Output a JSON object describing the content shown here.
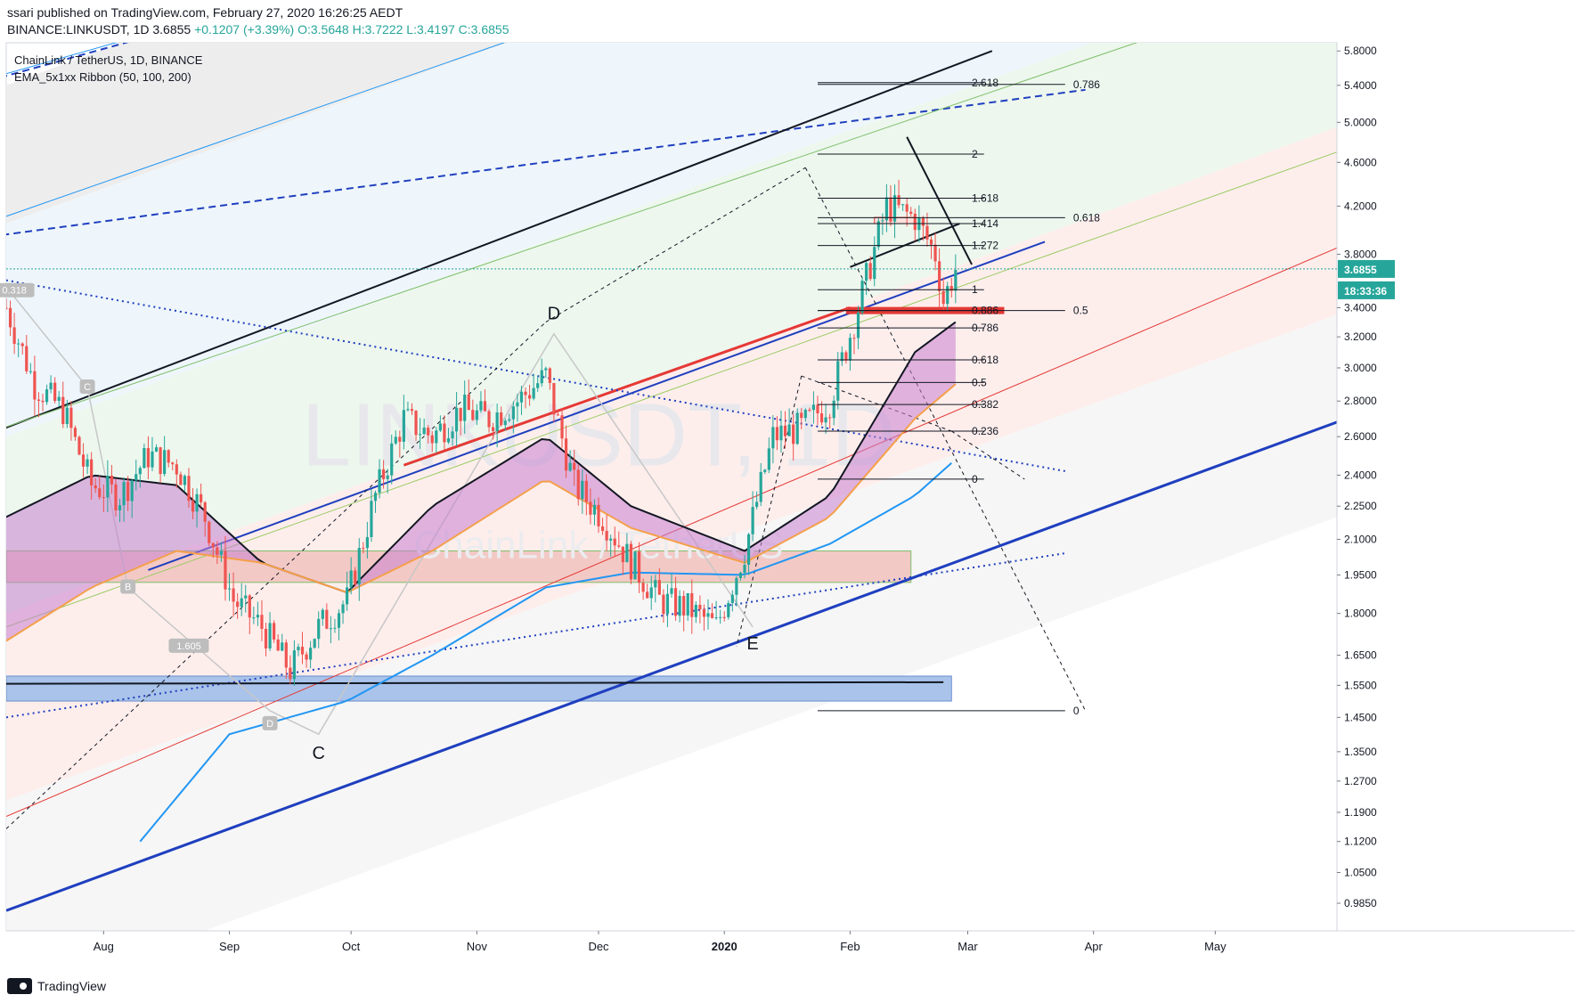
{
  "header": {
    "publish_line": "ssari published on TradingView.com, February 27, 2020 16:26:25 AEDT",
    "symbol_line_prefix": "BINANCE:LINKUSDT, 1D 3.6855",
    "change": "+0.1207 (+3.39%)",
    "ohlc": "O:3.5648 H:3.7222 L:3.4197 C:3.6855"
  },
  "indicators": {
    "pair_line": "ChainLink / TetherUS, 1D, BINANCE",
    "ribbon_line": "EMA_5x1xx Ribbon (50, 100, 200)"
  },
  "watermark": {
    "symbol": "LINKUSDT, 1D",
    "name": "ChainLink / TetherUS"
  },
  "price_badge": {
    "price": "3.6855",
    "countdown": "18:33:36"
  },
  "footer": {
    "brand": "TradingView"
  },
  "colors": {
    "up": "#26a69a",
    "down": "#ef5350",
    "ribbon": "#c77fd0",
    "ema100": "#f5a04a",
    "ema200": "#2196f3"
  },
  "chart_data": {
    "type": "candlestick",
    "y_scale": "log",
    "ylim": [
      0.93,
      5.9
    ],
    "x_range": [
      "2019-07-08",
      "2020-05-31"
    ],
    "y_ticks": [
      "5.8000",
      "5.4000",
      "5.0000",
      "4.6000",
      "4.2000",
      "3.8000",
      "3.4000",
      "3.2000",
      "3.0000",
      "2.8000",
      "2.6000",
      "2.4000",
      "2.2500",
      "2.1000",
      "1.9500",
      "1.8000",
      "1.6500",
      "1.5500",
      "1.4500",
      "1.3500",
      "1.2700",
      "1.1900",
      "1.1200",
      "1.0500",
      "0.9850"
    ],
    "x_ticks": [
      {
        "label": "Aug",
        "date": "2019-08-01"
      },
      {
        "label": "Sep",
        "date": "2019-09-01"
      },
      {
        "label": "Oct",
        "date": "2019-10-01"
      },
      {
        "label": "Nov",
        "date": "2019-11-01"
      },
      {
        "label": "Dec",
        "date": "2019-12-01"
      },
      {
        "label": "2020",
        "date": "2020-01-01"
      },
      {
        "label": "Feb",
        "date": "2020-02-01"
      },
      {
        "label": "Mar",
        "date": "2020-03-01"
      },
      {
        "label": "Apr",
        "date": "2020-04-01"
      },
      {
        "label": "May",
        "date": "2020-05-01"
      }
    ],
    "price_anchors": [
      [
        "2019-07-08",
        3.4
      ],
      [
        "2019-07-15",
        2.9
      ],
      [
        "2019-07-22",
        2.75
      ],
      [
        "2019-07-29",
        2.35
      ],
      [
        "2019-08-05",
        2.3
      ],
      [
        "2019-08-12",
        2.5
      ],
      [
        "2019-08-19",
        2.45
      ],
      [
        "2019-08-26",
        2.2
      ],
      [
        "2019-09-02",
        1.85
      ],
      [
        "2019-09-09",
        1.75
      ],
      [
        "2019-09-16",
        1.6
      ],
      [
        "2019-09-23",
        1.75
      ],
      [
        "2019-09-30",
        1.85
      ],
      [
        "2019-10-07",
        2.3
      ],
      [
        "2019-10-14",
        2.7
      ],
      [
        "2019-10-21",
        2.6
      ],
      [
        "2019-10-28",
        2.75
      ],
      [
        "2019-11-04",
        2.7
      ],
      [
        "2019-11-11",
        2.8
      ],
      [
        "2019-11-18",
        2.95
      ],
      [
        "2019-11-25",
        2.35
      ],
      [
        "2019-12-02",
        2.2
      ],
      [
        "2019-12-09",
        2.0
      ],
      [
        "2019-12-16",
        1.85
      ],
      [
        "2019-12-23",
        1.82
      ],
      [
        "2019-12-30",
        1.75
      ],
      [
        "2020-01-06",
        2.05
      ],
      [
        "2020-01-13",
        2.6
      ],
      [
        "2020-01-20",
        2.65
      ],
      [
        "2020-01-27",
        2.8
      ],
      [
        "2020-02-03",
        3.4
      ],
      [
        "2020-02-10",
        4.2
      ],
      [
        "2020-02-17",
        4.1
      ],
      [
        "2020-02-22",
        3.8
      ],
      [
        "2020-02-24",
        3.45
      ],
      [
        "2020-02-27",
        3.6855
      ]
    ],
    "ema_ribbon_top": [
      [
        "2019-07-08",
        2.2
      ],
      [
        "2019-07-29",
        2.4
      ],
      [
        "2019-08-19",
        2.35
      ],
      [
        "2019-09-09",
        2.0
      ],
      [
        "2019-09-30",
        1.88
      ],
      [
        "2019-10-21",
        2.25
      ],
      [
        "2019-11-18",
        2.6
      ],
      [
        "2019-12-09",
        2.25
      ],
      [
        "2020-01-06",
        2.05
      ],
      [
        "2020-01-27",
        2.3
      ],
      [
        "2020-02-17",
        3.1
      ],
      [
        "2020-02-27",
        3.3
      ]
    ],
    "ema_100": [
      [
        "2019-07-08",
        1.7
      ],
      [
        "2019-07-29",
        1.9
      ],
      [
        "2019-08-19",
        2.05
      ],
      [
        "2019-09-09",
        2.0
      ],
      [
        "2019-09-30",
        1.88
      ],
      [
        "2019-10-21",
        2.05
      ],
      [
        "2019-11-18",
        2.38
      ],
      [
        "2019-12-09",
        2.15
      ],
      [
        "2020-01-06",
        2.0
      ],
      [
        "2020-01-27",
        2.2
      ],
      [
        "2020-02-17",
        2.7
      ],
      [
        "2020-02-27",
        2.9
      ]
    ],
    "ema_200": [
      [
        "2019-08-10",
        1.12
      ],
      [
        "2019-09-01",
        1.4
      ],
      [
        "2019-09-30",
        1.5
      ],
      [
        "2019-10-21",
        1.65
      ],
      [
        "2019-11-18",
        1.9
      ],
      [
        "2019-12-09",
        1.96
      ],
      [
        "2020-01-06",
        1.95
      ],
      [
        "2020-01-27",
        2.08
      ],
      [
        "2020-02-17",
        2.3
      ],
      [
        "2020-02-27",
        2.48
      ]
    ],
    "fib_left": {
      "start": "2020-01-24",
      "end": "2020-03-05",
      "label_date": "2020-03-02",
      "levels": [
        [
          "2.618",
          5.43
        ],
        [
          "2",
          4.68
        ],
        [
          "1.618",
          4.27
        ],
        [
          "1.414",
          4.05
        ],
        [
          "1.272",
          3.87
        ],
        [
          "1",
          3.53
        ],
        [
          "0.886",
          3.38
        ],
        [
          "0.786",
          3.26
        ],
        [
          "0.618",
          3.05
        ],
        [
          "0.5",
          2.91
        ],
        [
          "0.382",
          2.78
        ],
        [
          "0.236",
          2.63
        ],
        [
          "0",
          2.38
        ]
      ]
    },
    "fib_right": {
      "start": "2020-01-24",
      "end": "2020-03-25",
      "label_date": "2020-03-27",
      "levels": [
        [
          "0.786",
          5.41
        ],
        [
          "0.618",
          4.1
        ],
        [
          "0.5",
          3.38
        ],
        [
          "0",
          1.47
        ]
      ]
    },
    "pattern_labels": [
      [
        "C",
        "2019-09-23",
        1.33
      ],
      [
        "D",
        "2019-11-20",
        3.32
      ],
      [
        "E",
        "2020-01-08",
        1.67
      ]
    ],
    "tag_labels": [
      [
        "0.318",
        "2019-07-10",
        3.52
      ],
      [
        "C",
        "2019-07-28",
        2.88
      ],
      [
        "B",
        "2019-08-07",
        1.9
      ],
      [
        "1.605",
        "2019-08-22",
        1.68
      ],
      [
        "D",
        "2019-09-11",
        1.43
      ]
    ]
  }
}
